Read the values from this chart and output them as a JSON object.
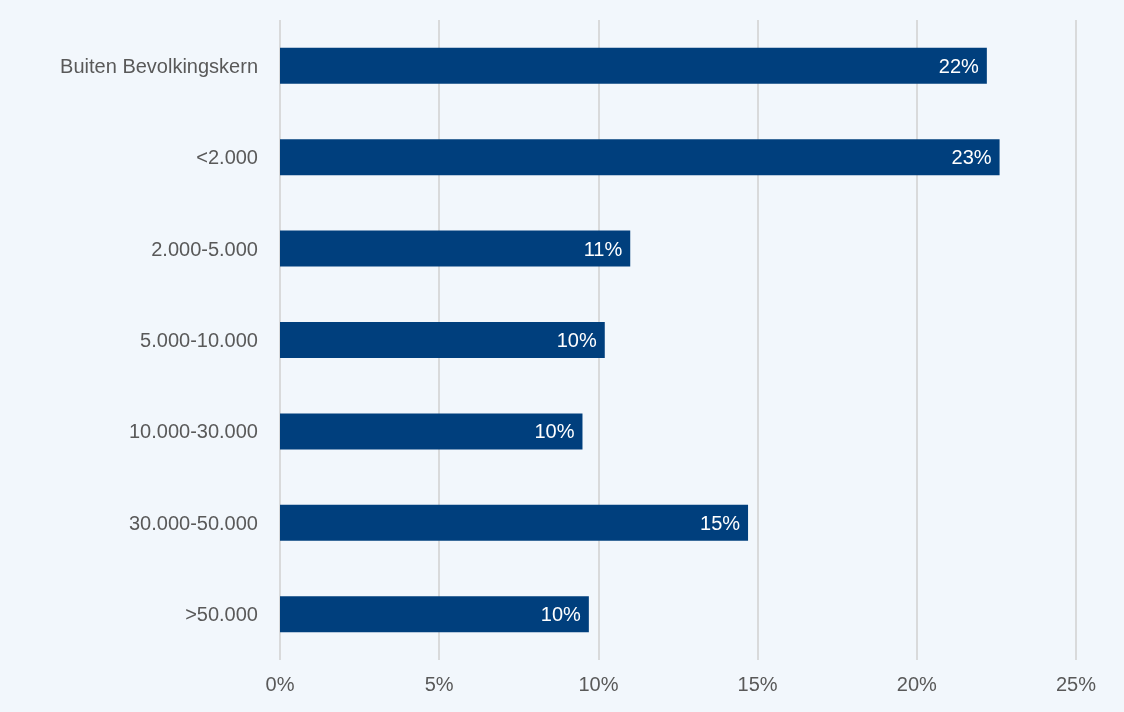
{
  "chart_data": {
    "type": "bar",
    "orientation": "horizontal",
    "categories": [
      "Buiten Bevolkingskern",
      "<2.000",
      "2.000-5.000",
      "5.000-10.000",
      "10.000-30.000",
      "30.000-50.000",
      ">50.000"
    ],
    "values": [
      22.2,
      22.6,
      11.0,
      10.2,
      9.5,
      14.7,
      9.7
    ],
    "value_labels": [
      "22%",
      "23%",
      "11%",
      "10%",
      "10%",
      "15%",
      "10%"
    ],
    "color": "#003f7d",
    "xlim": [
      0,
      25
    ],
    "xticks": [
      {
        "value": 0,
        "label": "0%"
      },
      {
        "value": 5,
        "label": "5%"
      },
      {
        "value": 10,
        "label": "10%"
      },
      {
        "value": 15,
        "label": "15%"
      },
      {
        "value": 20,
        "label": "20%"
      },
      {
        "value": 25,
        "label": "25%"
      }
    ],
    "grid": "x"
  }
}
